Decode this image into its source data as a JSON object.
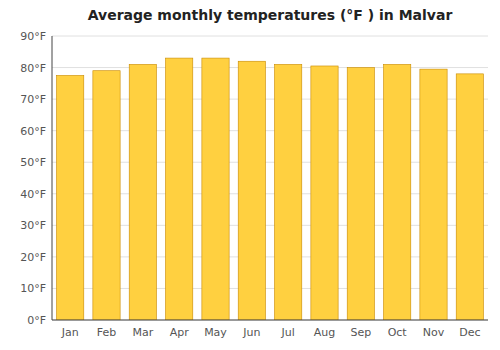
{
  "chart_data": {
    "type": "bar",
    "title": "Average monthly temperatures (°F ) in Malvar",
    "categories": [
      "Jan",
      "Feb",
      "Mar",
      "Apr",
      "May",
      "Jun",
      "Jul",
      "Aug",
      "Sep",
      "Oct",
      "Nov",
      "Dec"
    ],
    "values": [
      77.5,
      79.0,
      81.0,
      83.0,
      83.0,
      82.0,
      81.0,
      80.5,
      80.0,
      81.0,
      79.5,
      78.0
    ],
    "color": "#FFD040",
    "ylim": [
      0,
      90
    ],
    "yticks": [
      {
        "value": 0,
        "label": "0°F"
      },
      {
        "value": 10,
        "label": "10°F"
      },
      {
        "value": 20,
        "label": "20°F"
      },
      {
        "value": 30,
        "label": "30°F"
      },
      {
        "value": 40,
        "label": "40°F"
      },
      {
        "value": 50,
        "label": "50°F"
      },
      {
        "value": 60,
        "label": "60°F"
      },
      {
        "value": 70,
        "label": "70°F"
      },
      {
        "value": 80,
        "label": "80°F"
      },
      {
        "value": 90,
        "label": "90°F"
      }
    ],
    "grid": true
  }
}
